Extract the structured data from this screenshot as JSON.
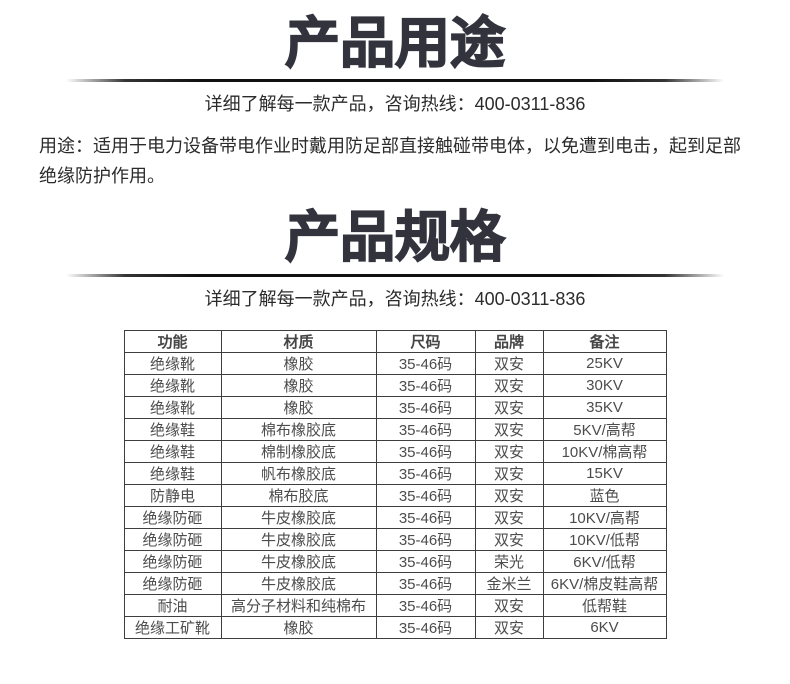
{
  "usage_section": {
    "title": "产品用途",
    "subtitle": "详细了解每一款产品，咨询热线：400-0311-836",
    "hotline": "400-0311-836",
    "description": "用途：适用于电力设备带电作业时戴用防足部直接触碰带电体，以免遭到电击，起到足部绝缘防护作用。"
  },
  "specs_section": {
    "title": "产品规格",
    "subtitle": "详细了解每一款产品，咨询热线：400-0311-836",
    "hotline": "400-0311-836"
  },
  "spec_table": {
    "headers": [
      "功能",
      "材质",
      "尺码",
      "品牌",
      "备注"
    ],
    "rows": [
      [
        "绝缘靴",
        "橡胶",
        "35-46码",
        "双安",
        "25KV"
      ],
      [
        "绝缘靴",
        "橡胶",
        "35-46码",
        "双安",
        "30KV"
      ],
      [
        "绝缘靴",
        "橡胶",
        "35-46码",
        "双安",
        "35KV"
      ],
      [
        "绝缘鞋",
        "棉布橡胶底",
        "35-46码",
        "双安",
        "5KV/高帮"
      ],
      [
        "绝缘鞋",
        "棉制橡胶底",
        "35-46码",
        "双安",
        "10KV/棉高帮"
      ],
      [
        "绝缘鞋",
        "帆布橡胶底",
        "35-46码",
        "双安",
        "15KV"
      ],
      [
        "防静电",
        "棉布胶底",
        "35-46码",
        "双安",
        "蓝色"
      ],
      [
        "绝缘防砸",
        "牛皮橡胶底",
        "35-46码",
        "双安",
        "10KV/高帮"
      ],
      [
        "绝缘防砸",
        "牛皮橡胶底",
        "35-46码",
        "双安",
        "10KV/低帮"
      ],
      [
        "绝缘防砸",
        "牛皮橡胶底",
        "35-46码",
        "荣光",
        "6KV/低帮"
      ],
      [
        "绝缘防砸",
        "牛皮橡胶底",
        "35-46码",
        "金米兰",
        "6KV/棉皮鞋高帮"
      ],
      [
        "耐油",
        "高分子材料和纯棉布",
        "35-46码",
        "双安",
        "低帮鞋"
      ],
      [
        "绝缘工矿靴",
        "橡胶",
        "35-46码",
        "双安",
        "6KV"
      ]
    ]
  },
  "colors": {
    "title": "#33333d",
    "body_text": "#2b2b2b",
    "table_text": "#4c4c4c",
    "table_border": "#3e3e3e",
    "divider": "#111111",
    "background": "#ffffff"
  }
}
